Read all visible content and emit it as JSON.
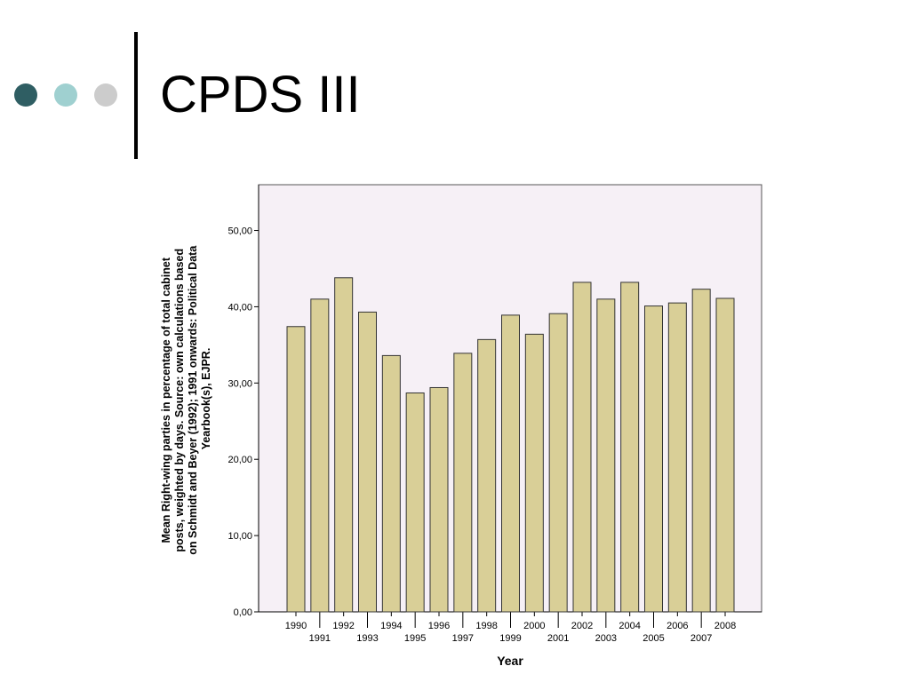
{
  "slide": {
    "title": "CPDS III",
    "bullet_colors": [
      "#2f5e63",
      "#9fd0d0",
      "#cccccc"
    ],
    "rule_color": "#000000"
  },
  "chart_data": {
    "type": "bar",
    "title": "",
    "xlabel": "Year",
    "ylabel_lines": [
      "Mean Right-wing parties in percentage of total cabinet",
      "posts, weighted by days. Source: own calculations based",
      "on Schmidt and Beyer (1992); 1991 onwards: Political Data",
      "Yearbook(s), EJPR."
    ],
    "categories": [
      "1990",
      "1991",
      "1992",
      "1993",
      "1994",
      "1995",
      "1996",
      "1997",
      "1998",
      "1999",
      "2000",
      "2001",
      "2002",
      "2003",
      "2004",
      "2005",
      "2006",
      "2007",
      "2008"
    ],
    "values": [
      37.4,
      41.0,
      43.8,
      39.3,
      33.6,
      28.7,
      29.4,
      33.9,
      35.7,
      38.9,
      36.4,
      39.1,
      43.2,
      41.0,
      43.2,
      40.1,
      40.5,
      42.3,
      41.1
    ],
    "ylim": [
      0,
      56
    ],
    "yticks": [
      0,
      10,
      20,
      30,
      40,
      50
    ],
    "ytick_labels": [
      "0,00",
      "10,00",
      "20,00",
      "30,00",
      "40,00",
      "50,00"
    ],
    "grid": false,
    "legend": "none",
    "colors": {
      "bar_fill": "#d9cf97",
      "bar_stroke": "#333333",
      "plot_background": "#f6f0f6",
      "frame": "#555555"
    }
  }
}
